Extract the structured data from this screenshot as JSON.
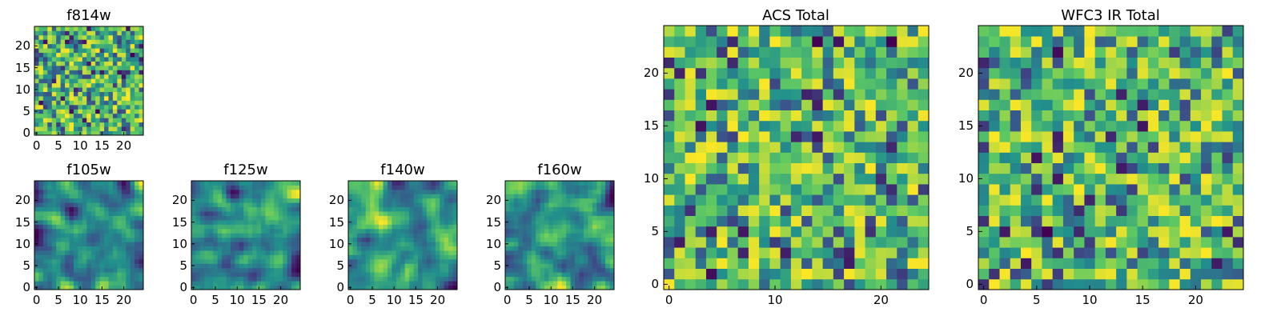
{
  "figure": {
    "colormap": "viridis"
  },
  "chart_data": [
    {
      "id": "f814w",
      "type": "heatmap",
      "title": "f814w",
      "grid": [
        25,
        25
      ],
      "x_ticks": [
        "0",
        "5",
        "10",
        "15",
        "20"
      ],
      "y_ticks": [
        "0",
        "5",
        "10",
        "15",
        "20"
      ],
      "xlim": [
        -0.5,
        24.5
      ],
      "ylim": [
        -0.5,
        24.5
      ],
      "seed": 11,
      "smooth": 0
    },
    {
      "id": "f105w",
      "type": "heatmap",
      "title": "f105w",
      "grid": [
        25,
        25
      ],
      "x_ticks": [
        "0",
        "5",
        "10",
        "15",
        "20"
      ],
      "y_ticks": [
        "0",
        "5",
        "10",
        "15",
        "20"
      ],
      "xlim": [
        -0.5,
        24.5
      ],
      "ylim": [
        -0.5,
        24.5
      ],
      "seed": 23,
      "smooth": 2
    },
    {
      "id": "f125w",
      "type": "heatmap",
      "title": "f125w",
      "grid": [
        25,
        25
      ],
      "x_ticks": [
        "0",
        "5",
        "10",
        "15",
        "20"
      ],
      "y_ticks": [
        "0",
        "5",
        "10",
        "15",
        "20"
      ],
      "xlim": [
        -0.5,
        24.5
      ],
      "ylim": [
        -0.5,
        24.5
      ],
      "seed": 37,
      "smooth": 2
    },
    {
      "id": "f140w",
      "type": "heatmap",
      "title": "f140w",
      "grid": [
        25,
        25
      ],
      "x_ticks": [
        "0",
        "5",
        "10",
        "15",
        "20"
      ],
      "y_ticks": [
        "0",
        "5",
        "10",
        "15",
        "20"
      ],
      "xlim": [
        -0.5,
        24.5
      ],
      "ylim": [
        -0.5,
        24.5
      ],
      "seed": 41,
      "smooth": 2
    },
    {
      "id": "f160w",
      "type": "heatmap",
      "title": "f160w",
      "grid": [
        25,
        25
      ],
      "x_ticks": [
        "0",
        "5",
        "10",
        "15",
        "20"
      ],
      "y_ticks": [
        "0",
        "5",
        "10",
        "15",
        "20"
      ],
      "xlim": [
        -0.5,
        24.5
      ],
      "ylim": [
        -0.5,
        24.5
      ],
      "seed": 53,
      "smooth": 2
    },
    {
      "id": "acs-total",
      "type": "heatmap",
      "title": "ACS Total",
      "grid": [
        25,
        25
      ],
      "x_ticks": [
        "0",
        "10",
        "20"
      ],
      "y_ticks": [
        "0",
        "5",
        "10",
        "15",
        "20"
      ],
      "xlim": [
        -0.5,
        24.5
      ],
      "ylim": [
        -0.5,
        24.5
      ],
      "seed": 67,
      "smooth": 0
    },
    {
      "id": "wfc3-ir-total",
      "type": "heatmap",
      "title": "WFC3 IR Total",
      "grid": [
        25,
        25
      ],
      "x_ticks": [
        "0",
        "5",
        "10",
        "15",
        "20"
      ],
      "y_ticks": [
        "0",
        "5",
        "10",
        "15",
        "20"
      ],
      "xlim": [
        -0.5,
        24.5
      ],
      "ylim": [
        -0.5,
        24.5
      ],
      "seed": 79,
      "smooth": 0
    }
  ]
}
